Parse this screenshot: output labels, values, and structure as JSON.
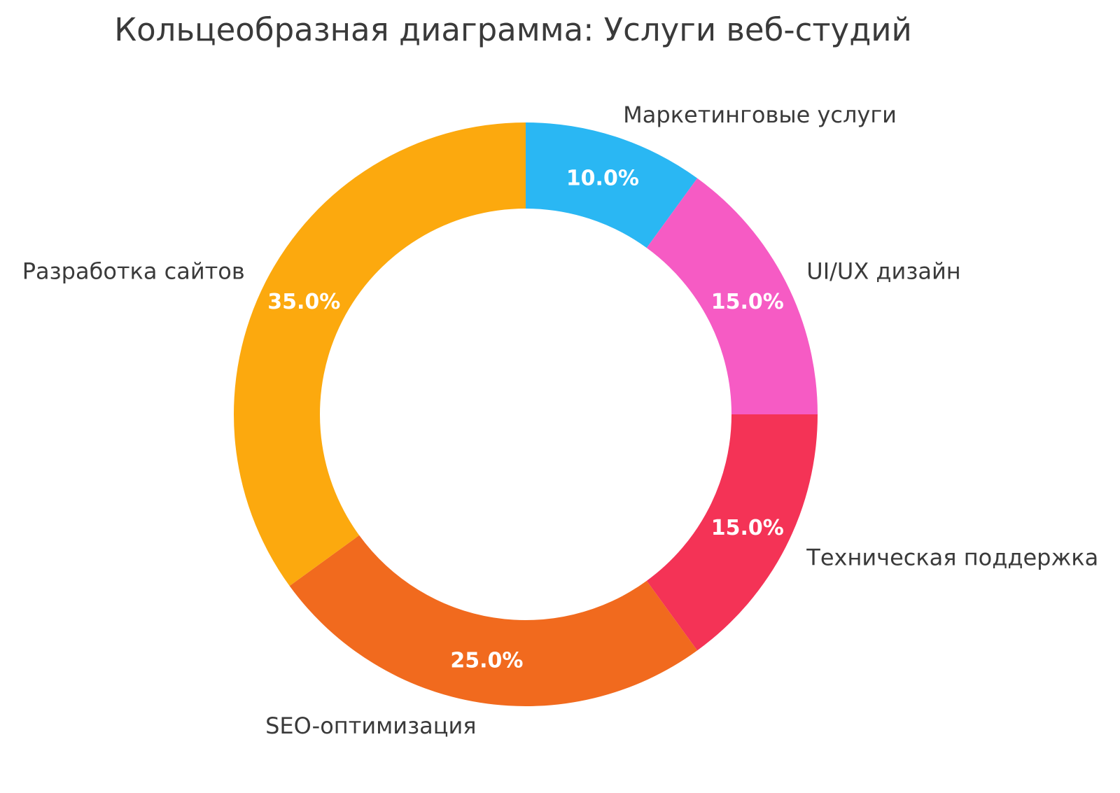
{
  "title": "Кольцеобразная диаграмма: Услуги веб-студий",
  "chart_data": {
    "type": "pie",
    "subtype": "donut",
    "title": "Кольцеобразная диаграмма: Услуги веб-студий",
    "categories": [
      "Маркетинговые услуги",
      "UI/UX дизайн",
      "Техническая поддержка",
      "SEO-оптимизация",
      "Разработка сайтов"
    ],
    "values": [
      10,
      15,
      15,
      25,
      35
    ],
    "percent_labels": [
      "10.0%",
      "15.0%",
      "15.0%",
      "25.0%",
      "35.0%"
    ],
    "colors": [
      "#2AB7F3",
      "#F65BC4",
      "#F43356",
      "#F16A1E",
      "#FCA90E"
    ],
    "start_angle": "top",
    "direction": "clockwise",
    "hole_ratio": 0.705,
    "legend": "none",
    "grid": "off",
    "background_color": "#FFFFFF",
    "title_color": "#3A3A3A",
    "category_label_color": "#3A3A3A",
    "percent_label_color": "#FFFFFF"
  }
}
